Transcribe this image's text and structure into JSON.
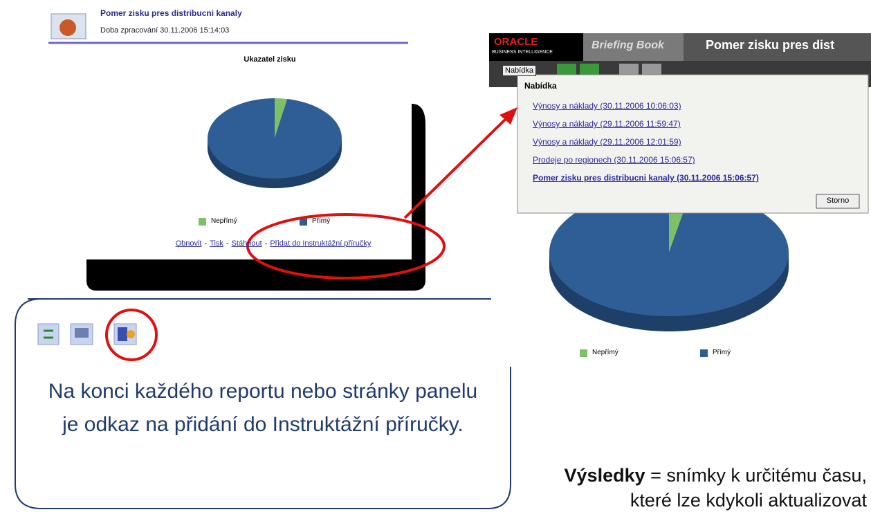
{
  "left_report": {
    "title": "Pomer zisku pres distribucni kanaly",
    "subtitle": "Doba zpracování 30.11.2006 15:14:03",
    "chart": {
      "type": "pie",
      "title": "Ukazatel zisku",
      "categories": [
        "Nepřímý",
        "Přímý"
      ],
      "values": [
        3,
        97
      ],
      "colors": [
        "#7fbf6a",
        "#2e5e95"
      ]
    },
    "links": [
      "Obnovit",
      "Tisk",
      "Stáhnout",
      "Přidat do Instruktážní příručky"
    ],
    "link_separator": "-"
  },
  "right_screen": {
    "brand": "ORACLE",
    "brand_sub": "BUSINESS INTELLIGENCE",
    "tab": "Briefing Book",
    "page_title": "Pomer zisku pres dist",
    "menu_button": "Nabídka",
    "menu": {
      "title": "Nabídka",
      "items": [
        "Výnosy a náklady (30.11.2006 10:06:03)",
        "Výnosy a náklady (29.11.2006 11:59:47)",
        "Výnosy a náklady (29.11.2006 12:01:59)",
        "Prodeje po regionech (30.11.2006 15:06:57)",
        "Pomer zisku pres distribucni kanaly (30.11.2006 15:06:57)"
      ],
      "cancel": "Storno"
    },
    "chart": {
      "type": "pie",
      "categories": [
        "Nepřímý",
        "Přímý"
      ],
      "values": [
        3,
        97
      ],
      "colors": [
        "#7fbf6a",
        "#2e5e95"
      ]
    }
  },
  "caption_left": "Na konci každého reportu nebo stránky panelu je odkaz na přidání do Instruktážní příručky.",
  "caption_right": {
    "bold": "Výsledky",
    "line1": "= snímky k určitému času,",
    "line2": "které lze kdykoli aktualizovat"
  }
}
